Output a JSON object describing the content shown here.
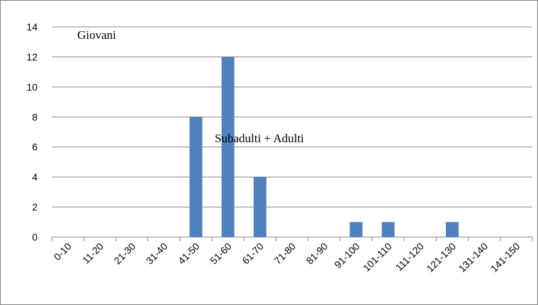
{
  "chart_data": {
    "type": "bar",
    "categories": [
      "0-10",
      "11-20",
      "21-30",
      "31-40",
      "41-50",
      "51-60",
      "61-70",
      "71-80",
      "81-90",
      "91-100",
      "101-110",
      "111-120",
      "121-130",
      "131-140",
      "141-150"
    ],
    "values": [
      0,
      0,
      0,
      0,
      8,
      12,
      4,
      0,
      0,
      1,
      1,
      0,
      1,
      0,
      0
    ],
    "ylim": [
      0,
      14
    ],
    "yticks": [
      0,
      2,
      4,
      6,
      8,
      10,
      12,
      14
    ],
    "grid": true,
    "bar_color": "#4F81BD",
    "annotations": [
      {
        "text": "Giovani"
      },
      {
        "text": "Subadulti + Adulti"
      }
    ]
  }
}
